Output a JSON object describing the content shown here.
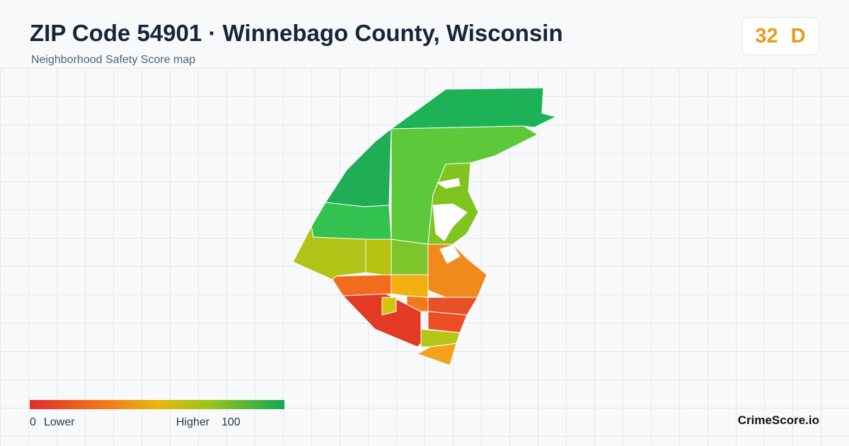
{
  "header": {
    "title": "ZIP Code 54901 · Winnebago County, Wisconsin",
    "subtitle": "Neighborhood Safety Score map"
  },
  "score": {
    "value": 32,
    "grade": "D"
  },
  "legend": {
    "min": 0,
    "min_label": "Lower",
    "max_label": "Higher",
    "max": 100
  },
  "footer": {
    "brand": "CrimeScore.io"
  }
}
